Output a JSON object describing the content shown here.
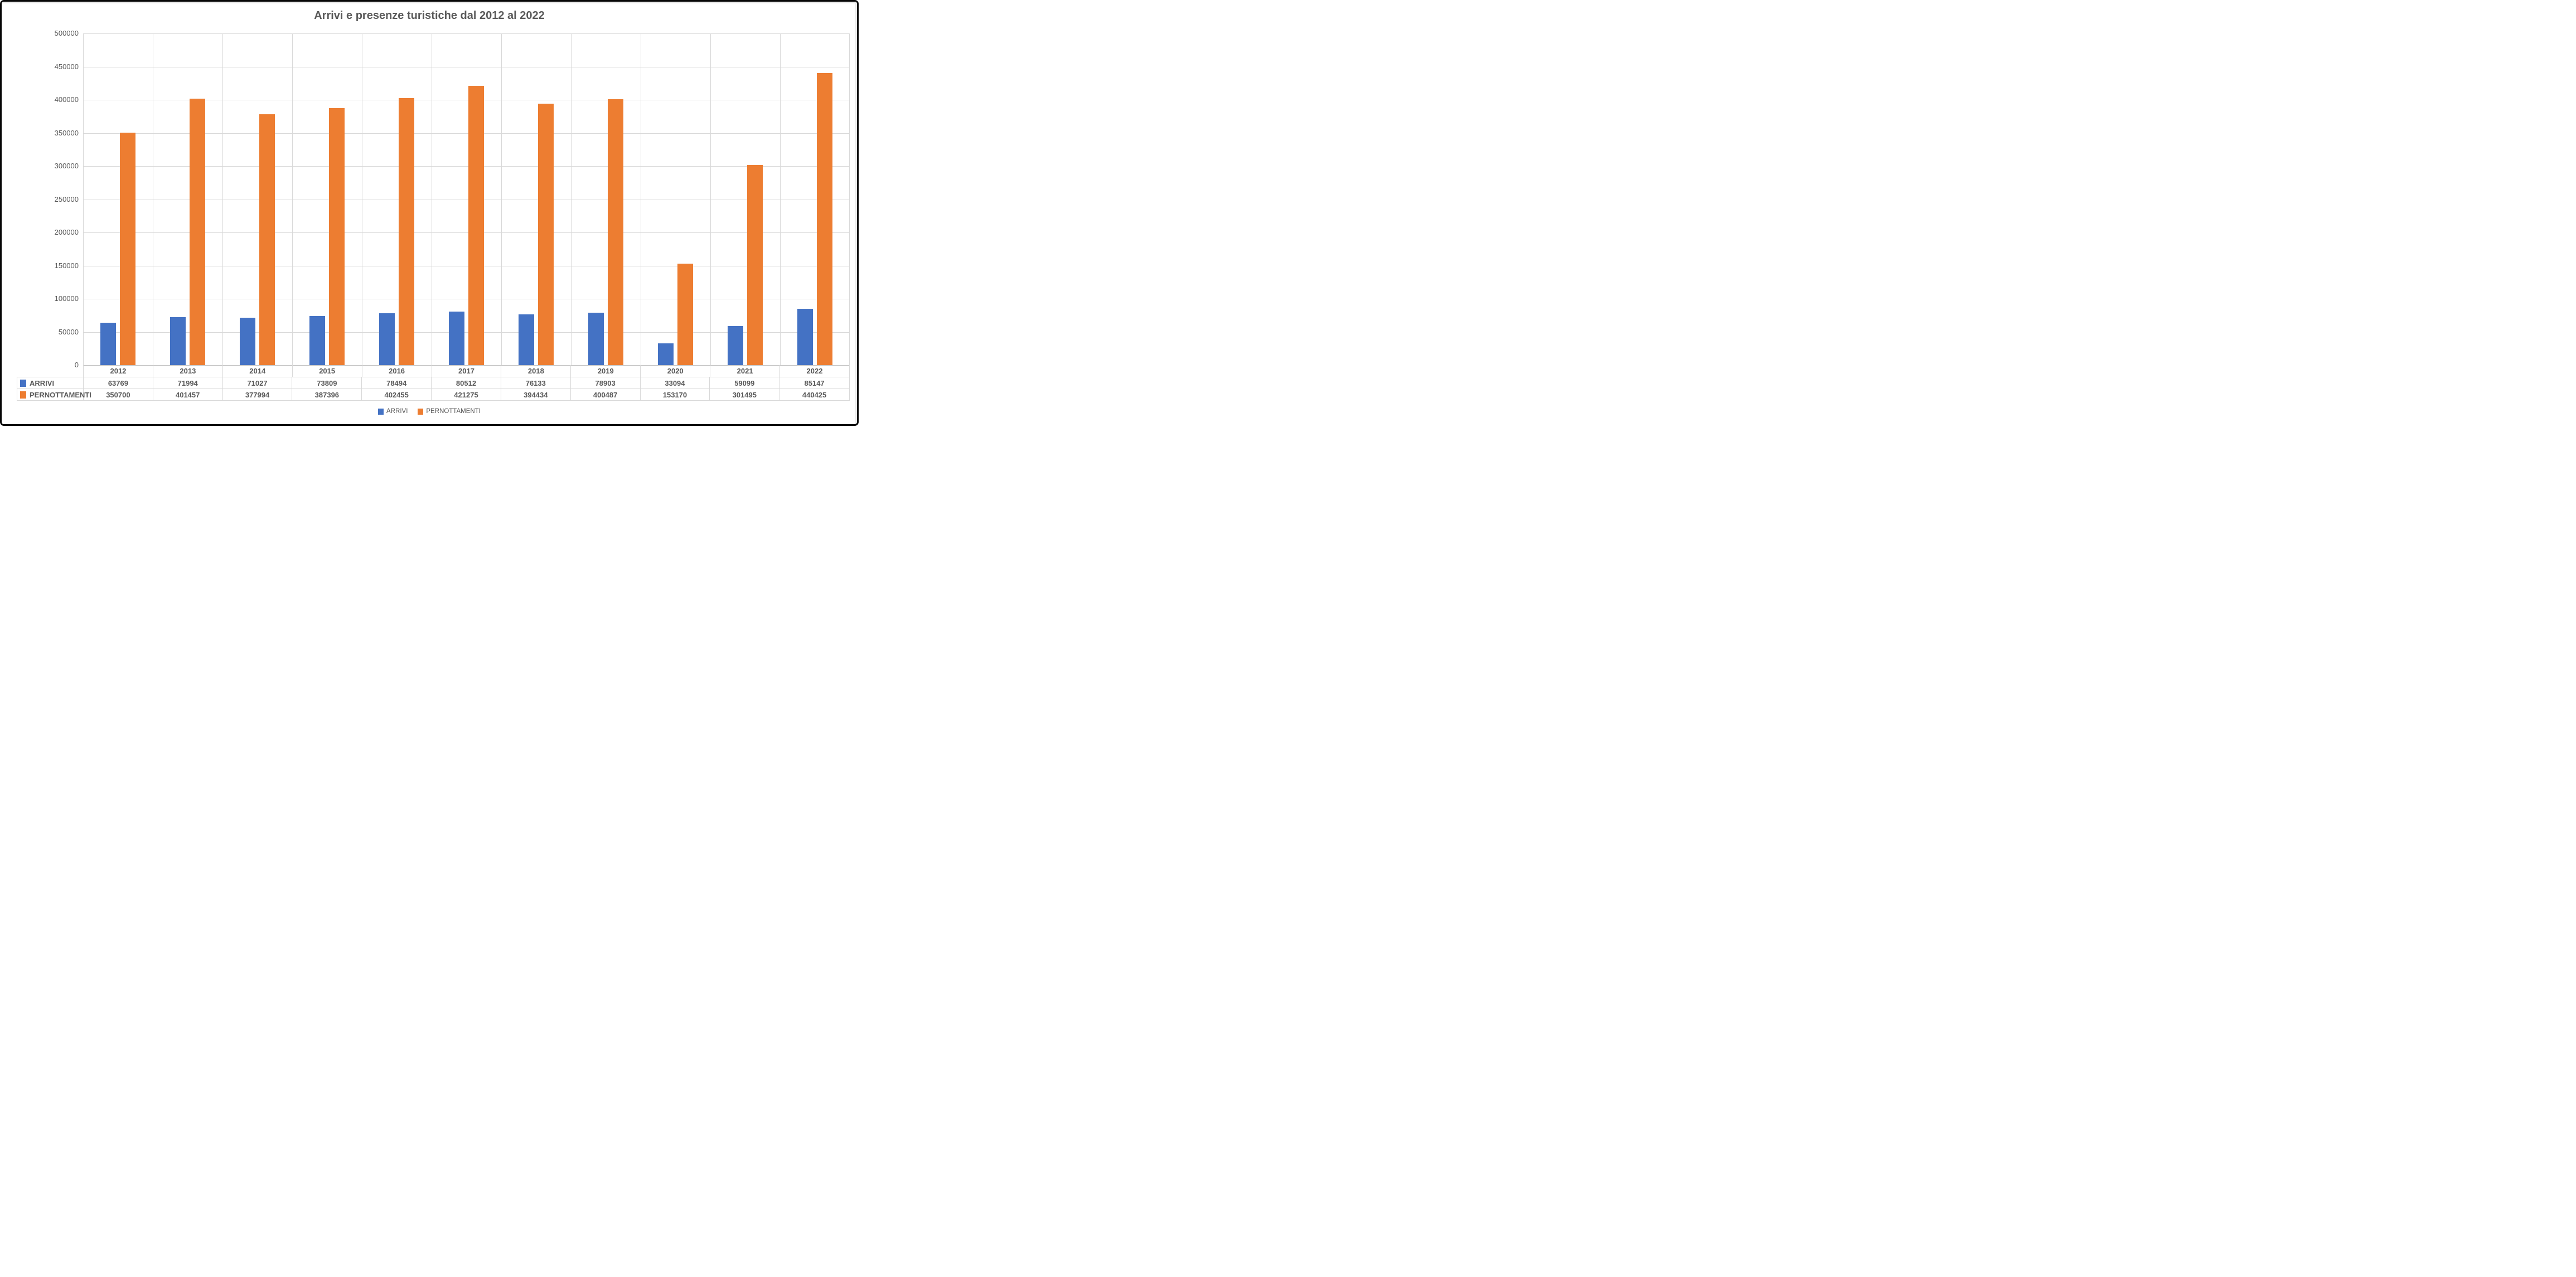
{
  "window": {
    "border_color": "#060606",
    "chrome_color": "#e9e9e9",
    "background": "#ffffff"
  },
  "chart_data": {
    "type": "bar",
    "title": "Arrivi e presenze turistiche dal 2012 al 2022",
    "categories": [
      "2012",
      "2013",
      "2014",
      "2015",
      "2016",
      "2017",
      "2018",
      "2019",
      "2020",
      "2021",
      "2022"
    ],
    "series": [
      {
        "name": "ARRIVI",
        "color": "#4472C4",
        "values": [
          63769,
          71994,
          71027,
          73809,
          78494,
          80512,
          76133,
          78903,
          33094,
          59099,
          85147
        ]
      },
      {
        "name": "PERNOTTAMENTI",
        "color": "#ED7D31",
        "values": [
          350700,
          401457,
          377994,
          387396,
          402455,
          421275,
          394434,
          400487,
          153170,
          301495,
          440425
        ]
      }
    ],
    "ylim": [
      0,
      500000
    ],
    "yticks": [
      0,
      50000,
      100000,
      150000,
      200000,
      250000,
      300000,
      350000,
      400000,
      450000,
      500000
    ],
    "grid": true,
    "gridline_color": "#D9D9D9",
    "axis_line_color": "#BFBFBF",
    "text_color": "#595959",
    "legend_position": "bottom",
    "data_table_shown": true
  }
}
